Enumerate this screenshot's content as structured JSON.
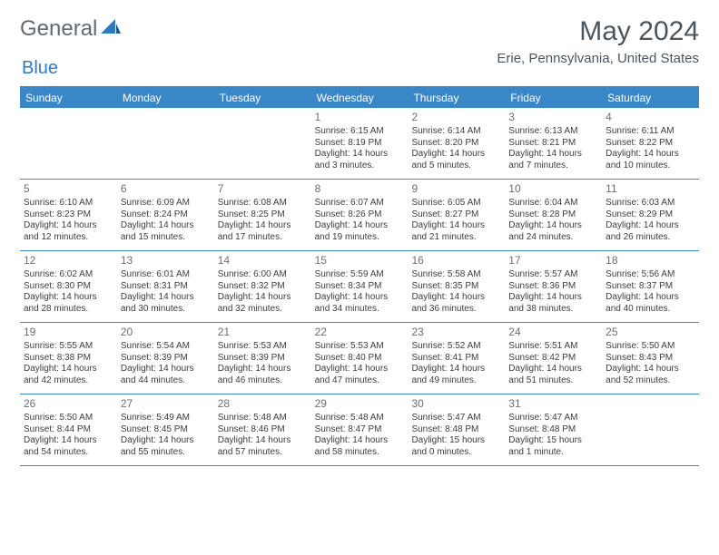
{
  "logo": {
    "text_general": "General",
    "text_blue": "Blue"
  },
  "title": "May 2024",
  "location": "Erie, Pennsylvania, United States",
  "colors": {
    "header_blue": "#3a87c7",
    "text_gray": "#4a5560",
    "logo_gray": "#5f6a72",
    "logo_blue": "#2f7bbf",
    "background": "#ffffff"
  },
  "days_of_week": [
    "Sunday",
    "Monday",
    "Tuesday",
    "Wednesday",
    "Thursday",
    "Friday",
    "Saturday"
  ],
  "weeks": [
    [
      null,
      null,
      null,
      {
        "n": "1",
        "sr": "Sunrise: 6:15 AM",
        "ss": "Sunset: 8:19 PM",
        "d1": "Daylight: 14 hours",
        "d2": "and 3 minutes."
      },
      {
        "n": "2",
        "sr": "Sunrise: 6:14 AM",
        "ss": "Sunset: 8:20 PM",
        "d1": "Daylight: 14 hours",
        "d2": "and 5 minutes."
      },
      {
        "n": "3",
        "sr": "Sunrise: 6:13 AM",
        "ss": "Sunset: 8:21 PM",
        "d1": "Daylight: 14 hours",
        "d2": "and 7 minutes."
      },
      {
        "n": "4",
        "sr": "Sunrise: 6:11 AM",
        "ss": "Sunset: 8:22 PM",
        "d1": "Daylight: 14 hours",
        "d2": "and 10 minutes."
      }
    ],
    [
      {
        "n": "5",
        "sr": "Sunrise: 6:10 AM",
        "ss": "Sunset: 8:23 PM",
        "d1": "Daylight: 14 hours",
        "d2": "and 12 minutes."
      },
      {
        "n": "6",
        "sr": "Sunrise: 6:09 AM",
        "ss": "Sunset: 8:24 PM",
        "d1": "Daylight: 14 hours",
        "d2": "and 15 minutes."
      },
      {
        "n": "7",
        "sr": "Sunrise: 6:08 AM",
        "ss": "Sunset: 8:25 PM",
        "d1": "Daylight: 14 hours",
        "d2": "and 17 minutes."
      },
      {
        "n": "8",
        "sr": "Sunrise: 6:07 AM",
        "ss": "Sunset: 8:26 PM",
        "d1": "Daylight: 14 hours",
        "d2": "and 19 minutes."
      },
      {
        "n": "9",
        "sr": "Sunrise: 6:05 AM",
        "ss": "Sunset: 8:27 PM",
        "d1": "Daylight: 14 hours",
        "d2": "and 21 minutes."
      },
      {
        "n": "10",
        "sr": "Sunrise: 6:04 AM",
        "ss": "Sunset: 8:28 PM",
        "d1": "Daylight: 14 hours",
        "d2": "and 24 minutes."
      },
      {
        "n": "11",
        "sr": "Sunrise: 6:03 AM",
        "ss": "Sunset: 8:29 PM",
        "d1": "Daylight: 14 hours",
        "d2": "and 26 minutes."
      }
    ],
    [
      {
        "n": "12",
        "sr": "Sunrise: 6:02 AM",
        "ss": "Sunset: 8:30 PM",
        "d1": "Daylight: 14 hours",
        "d2": "and 28 minutes."
      },
      {
        "n": "13",
        "sr": "Sunrise: 6:01 AM",
        "ss": "Sunset: 8:31 PM",
        "d1": "Daylight: 14 hours",
        "d2": "and 30 minutes."
      },
      {
        "n": "14",
        "sr": "Sunrise: 6:00 AM",
        "ss": "Sunset: 8:32 PM",
        "d1": "Daylight: 14 hours",
        "d2": "and 32 minutes."
      },
      {
        "n": "15",
        "sr": "Sunrise: 5:59 AM",
        "ss": "Sunset: 8:34 PM",
        "d1": "Daylight: 14 hours",
        "d2": "and 34 minutes."
      },
      {
        "n": "16",
        "sr": "Sunrise: 5:58 AM",
        "ss": "Sunset: 8:35 PM",
        "d1": "Daylight: 14 hours",
        "d2": "and 36 minutes."
      },
      {
        "n": "17",
        "sr": "Sunrise: 5:57 AM",
        "ss": "Sunset: 8:36 PM",
        "d1": "Daylight: 14 hours",
        "d2": "and 38 minutes."
      },
      {
        "n": "18",
        "sr": "Sunrise: 5:56 AM",
        "ss": "Sunset: 8:37 PM",
        "d1": "Daylight: 14 hours",
        "d2": "and 40 minutes."
      }
    ],
    [
      {
        "n": "19",
        "sr": "Sunrise: 5:55 AM",
        "ss": "Sunset: 8:38 PM",
        "d1": "Daylight: 14 hours",
        "d2": "and 42 minutes."
      },
      {
        "n": "20",
        "sr": "Sunrise: 5:54 AM",
        "ss": "Sunset: 8:39 PM",
        "d1": "Daylight: 14 hours",
        "d2": "and 44 minutes."
      },
      {
        "n": "21",
        "sr": "Sunrise: 5:53 AM",
        "ss": "Sunset: 8:39 PM",
        "d1": "Daylight: 14 hours",
        "d2": "and 46 minutes."
      },
      {
        "n": "22",
        "sr": "Sunrise: 5:53 AM",
        "ss": "Sunset: 8:40 PM",
        "d1": "Daylight: 14 hours",
        "d2": "and 47 minutes."
      },
      {
        "n": "23",
        "sr": "Sunrise: 5:52 AM",
        "ss": "Sunset: 8:41 PM",
        "d1": "Daylight: 14 hours",
        "d2": "and 49 minutes."
      },
      {
        "n": "24",
        "sr": "Sunrise: 5:51 AM",
        "ss": "Sunset: 8:42 PM",
        "d1": "Daylight: 14 hours",
        "d2": "and 51 minutes."
      },
      {
        "n": "25",
        "sr": "Sunrise: 5:50 AM",
        "ss": "Sunset: 8:43 PM",
        "d1": "Daylight: 14 hours",
        "d2": "and 52 minutes."
      }
    ],
    [
      {
        "n": "26",
        "sr": "Sunrise: 5:50 AM",
        "ss": "Sunset: 8:44 PM",
        "d1": "Daylight: 14 hours",
        "d2": "and 54 minutes."
      },
      {
        "n": "27",
        "sr": "Sunrise: 5:49 AM",
        "ss": "Sunset: 8:45 PM",
        "d1": "Daylight: 14 hours",
        "d2": "and 55 minutes."
      },
      {
        "n": "28",
        "sr": "Sunrise: 5:48 AM",
        "ss": "Sunset: 8:46 PM",
        "d1": "Daylight: 14 hours",
        "d2": "and 57 minutes."
      },
      {
        "n": "29",
        "sr": "Sunrise: 5:48 AM",
        "ss": "Sunset: 8:47 PM",
        "d1": "Daylight: 14 hours",
        "d2": "and 58 minutes."
      },
      {
        "n": "30",
        "sr": "Sunrise: 5:47 AM",
        "ss": "Sunset: 8:48 PM",
        "d1": "Daylight: 15 hours",
        "d2": "and 0 minutes."
      },
      {
        "n": "31",
        "sr": "Sunrise: 5:47 AM",
        "ss": "Sunset: 8:48 PM",
        "d1": "Daylight: 15 hours",
        "d2": "and 1 minute."
      },
      null
    ]
  ]
}
